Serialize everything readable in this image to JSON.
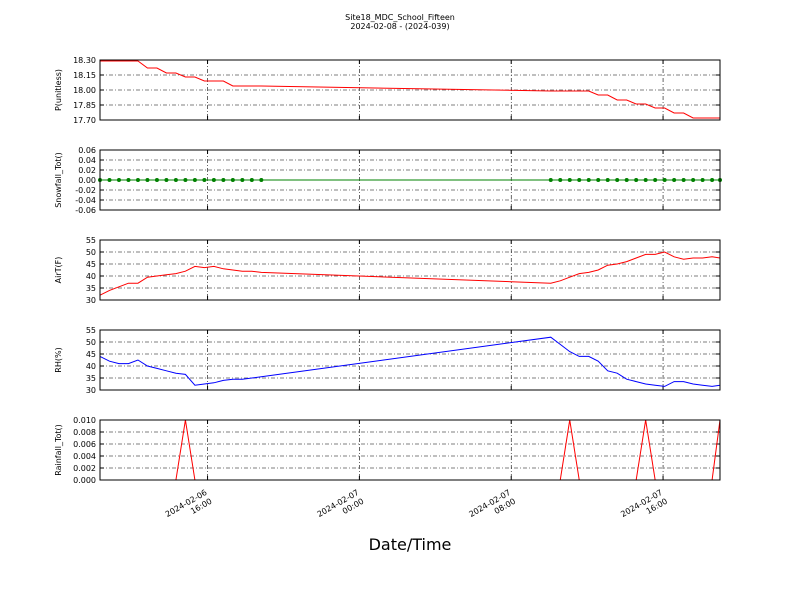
{
  "title": "Site18_MDC_School_Fifteen",
  "subtitle": "2024-02-08 - (2024-039)",
  "xlabel": "Date/Time",
  "chart_data": [
    {
      "type": "line",
      "ylabel": "P(unitless)",
      "grid": true,
      "x": [
        "2024-02-06 10:20",
        "2024-02-06 10:50",
        "2024-02-06 11:20",
        "2024-02-06 11:50",
        "2024-02-06 12:20",
        "2024-02-06 12:50",
        "2024-02-06 13:20",
        "2024-02-06 13:50",
        "2024-02-06 14:20",
        "2024-02-06 14:50",
        "2024-02-06 15:20",
        "2024-02-06 15:50",
        "2024-02-06 16:20",
        "2024-02-06 16:50",
        "2024-02-06 17:20",
        "2024-02-06 17:50",
        "2024-02-06 18:20",
        "2024-02-06 18:50",
        "2024-02-07 10:05",
        "2024-02-07 10:35",
        "2024-02-07 11:05",
        "2024-02-07 11:35",
        "2024-02-07 12:05",
        "2024-02-07 12:35",
        "2024-02-07 13:05",
        "2024-02-07 13:35",
        "2024-02-07 14:05",
        "2024-02-07 14:35",
        "2024-02-07 15:05",
        "2024-02-07 15:35",
        "2024-02-07 16:05",
        "2024-02-07 16:35",
        "2024-02-07 17:05",
        "2024-02-07 17:35",
        "2024-02-07 18:05",
        "2024-02-07 18:35",
        "2024-02-07 19:00"
      ],
      "xlim": [
        "2024-02-06 10:20",
        "2024-02-07 19:00"
      ],
      "xticks": [
        "2024-02-06 16:00",
        "2024-02-07 00:00",
        "2024-02-07 08:00",
        "2024-02-07 16:00"
      ],
      "ylim": [
        17.7,
        18.3
      ],
      "yticks": [
        {
          "value": 17.7,
          "label": "17.70"
        },
        {
          "value": 17.85,
          "label": "17.85"
        },
        {
          "value": 18.0,
          "label": "18.00"
        },
        {
          "value": 18.15,
          "label": "18.15"
        },
        {
          "value": 18.3,
          "label": "18.30"
        }
      ],
      "series": [
        {
          "color": "#ff0000",
          "values": [
            18.29,
            18.29,
            18.29,
            18.29,
            18.29,
            18.22,
            18.22,
            18.17,
            18.17,
            18.13,
            18.13,
            18.09,
            18.09,
            18.09,
            18.04,
            18.04,
            18.04,
            18.04,
            17.99,
            17.99,
            17.99,
            17.99,
            17.99,
            17.95,
            17.95,
            17.9,
            17.9,
            17.86,
            17.86,
            17.82,
            17.82,
            17.77,
            17.77,
            17.72,
            17.72,
            17.72,
            17.72
          ]
        }
      ]
    },
    {
      "type": "line",
      "ylabel": "Snowfall_Tot()",
      "grid": true,
      "marker": true,
      "x": [
        "2024-02-06 10:20",
        "2024-02-06 10:50",
        "2024-02-06 11:20",
        "2024-02-06 11:50",
        "2024-02-06 12:20",
        "2024-02-06 12:50",
        "2024-02-06 13:20",
        "2024-02-06 13:50",
        "2024-02-06 14:20",
        "2024-02-06 14:50",
        "2024-02-06 15:20",
        "2024-02-06 15:50",
        "2024-02-06 16:20",
        "2024-02-06 16:50",
        "2024-02-06 17:20",
        "2024-02-06 17:50",
        "2024-02-06 18:20",
        "2024-02-06 18:50",
        "2024-02-07 10:05",
        "2024-02-07 10:35",
        "2024-02-07 11:05",
        "2024-02-07 11:35",
        "2024-02-07 12:05",
        "2024-02-07 12:35",
        "2024-02-07 13:05",
        "2024-02-07 13:35",
        "2024-02-07 14:05",
        "2024-02-07 14:35",
        "2024-02-07 15:05",
        "2024-02-07 15:35",
        "2024-02-07 16:05",
        "2024-02-07 16:35",
        "2024-02-07 17:05",
        "2024-02-07 17:35",
        "2024-02-07 18:05",
        "2024-02-07 18:35",
        "2024-02-07 19:00"
      ],
      "xlim": [
        "2024-02-06 10:20",
        "2024-02-07 19:00"
      ],
      "xticks": [
        "2024-02-06 16:00",
        "2024-02-07 00:00",
        "2024-02-07 08:00",
        "2024-02-07 16:00"
      ],
      "ylim": [
        -0.06,
        0.06
      ],
      "yticks": [
        {
          "value": -0.06,
          "label": "-0.06"
        },
        {
          "value": -0.04,
          "label": "-0.04"
        },
        {
          "value": -0.02,
          "label": "-0.02"
        },
        {
          "value": 0,
          "label": "0.00"
        },
        {
          "value": 0.02,
          "label": "0.02"
        },
        {
          "value": 0.04,
          "label": "0.04"
        },
        {
          "value": 0.06,
          "label": "0.06"
        }
      ],
      "series": [
        {
          "color": "#008000",
          "values": [
            0,
            0,
            0,
            0,
            0,
            0,
            0,
            0,
            0,
            0,
            0,
            0,
            0,
            0,
            0,
            0,
            0,
            0,
            0,
            0,
            0,
            0,
            0,
            0,
            0,
            0,
            0,
            0,
            0,
            0,
            0,
            0,
            0,
            0,
            0,
            0,
            0
          ]
        }
      ]
    },
    {
      "type": "line",
      "ylabel": "AirT(F)",
      "grid": true,
      "x": [
        "2024-02-06 10:20",
        "2024-02-06 10:50",
        "2024-02-06 11:20",
        "2024-02-06 11:50",
        "2024-02-06 12:20",
        "2024-02-06 12:50",
        "2024-02-06 13:20",
        "2024-02-06 13:50",
        "2024-02-06 14:20",
        "2024-02-06 14:50",
        "2024-02-06 15:20",
        "2024-02-06 15:50",
        "2024-02-06 16:20",
        "2024-02-06 16:50",
        "2024-02-06 17:20",
        "2024-02-06 17:50",
        "2024-02-06 18:20",
        "2024-02-06 18:50",
        "2024-02-07 10:05",
        "2024-02-07 10:35",
        "2024-02-07 11:05",
        "2024-02-07 11:35",
        "2024-02-07 12:05",
        "2024-02-07 12:35",
        "2024-02-07 13:05",
        "2024-02-07 13:35",
        "2024-02-07 14:05",
        "2024-02-07 14:35",
        "2024-02-07 15:05",
        "2024-02-07 15:35",
        "2024-02-07 16:05",
        "2024-02-07 16:35",
        "2024-02-07 17:05",
        "2024-02-07 17:35",
        "2024-02-07 18:05",
        "2024-02-07 18:35",
        "2024-02-07 19:00"
      ],
      "xlim": [
        "2024-02-06 10:20",
        "2024-02-07 19:00"
      ],
      "xticks": [
        "2024-02-06 16:00",
        "2024-02-07 00:00",
        "2024-02-07 08:00",
        "2024-02-07 16:00"
      ],
      "ylim": [
        30,
        55
      ],
      "yticks": [
        30,
        35,
        40,
        45,
        50,
        55
      ],
      "series": [
        {
          "color": "#ff0000",
          "values": [
            32,
            34,
            35.5,
            37,
            37,
            39.5,
            40,
            40.5,
            41,
            42,
            44,
            43.5,
            44,
            43,
            42.5,
            42,
            42,
            41.5,
            37,
            38,
            39.5,
            41,
            41.5,
            42.5,
            44.5,
            45,
            46,
            47.5,
            49,
            49,
            50,
            48,
            47,
            47.5,
            47.5,
            48,
            47.5
          ]
        }
      ]
    },
    {
      "type": "line",
      "ylabel": "RH(%)",
      "grid": true,
      "x": [
        "2024-02-06 10:20",
        "2024-02-06 10:50",
        "2024-02-06 11:20",
        "2024-02-06 11:50",
        "2024-02-06 12:20",
        "2024-02-06 12:50",
        "2024-02-06 13:20",
        "2024-02-06 13:50",
        "2024-02-06 14:20",
        "2024-02-06 14:50",
        "2024-02-06 15:20",
        "2024-02-06 15:50",
        "2024-02-06 16:20",
        "2024-02-06 16:50",
        "2024-02-06 17:20",
        "2024-02-06 17:50",
        "2024-02-06 18:20",
        "2024-02-06 18:50",
        "2024-02-07 10:05",
        "2024-02-07 10:35",
        "2024-02-07 11:05",
        "2024-02-07 11:35",
        "2024-02-07 12:05",
        "2024-02-07 12:35",
        "2024-02-07 13:05",
        "2024-02-07 13:35",
        "2024-02-07 14:05",
        "2024-02-07 14:35",
        "2024-02-07 15:05",
        "2024-02-07 15:35",
        "2024-02-07 16:05",
        "2024-02-07 16:35",
        "2024-02-07 17:05",
        "2024-02-07 17:35",
        "2024-02-07 18:05",
        "2024-02-07 18:35",
        "2024-02-07 19:00"
      ],
      "xlim": [
        "2024-02-06 10:20",
        "2024-02-07 19:00"
      ],
      "xticks": [
        "2024-02-06 16:00",
        "2024-02-07 00:00",
        "2024-02-07 08:00",
        "2024-02-07 16:00"
      ],
      "ylim": [
        30,
        55
      ],
      "yticks": [
        30,
        35,
        40,
        45,
        50,
        55
      ],
      "series": [
        {
          "color": "#0000ff",
          "values": [
            44,
            42,
            41,
            41,
            42.5,
            40,
            39,
            38,
            37,
            36.5,
            32,
            32.5,
            33,
            34,
            34.5,
            34.5,
            35,
            35.5,
            52,
            49,
            46,
            44,
            44,
            42,
            38,
            37,
            34.5,
            33.5,
            32.5,
            32,
            31.5,
            33.5,
            33.5,
            32.5,
            32,
            31.5,
            32
          ]
        }
      ]
    },
    {
      "type": "line",
      "ylabel": "Rainfall_Tot()",
      "grid": true,
      "x": [
        "2024-02-06 10:20",
        "2024-02-06 10:50",
        "2024-02-06 11:20",
        "2024-02-06 11:50",
        "2024-02-06 12:20",
        "2024-02-06 12:50",
        "2024-02-06 13:20",
        "2024-02-06 13:50",
        "2024-02-06 14:20",
        "2024-02-06 14:50",
        "2024-02-06 15:20",
        "2024-02-06 15:50",
        "2024-02-06 16:20",
        "2024-02-06 16:50",
        "2024-02-06 17:20",
        "2024-02-06 17:50",
        "2024-02-06 18:20",
        "2024-02-06 18:50",
        "2024-02-07 10:05",
        "2024-02-07 10:35",
        "2024-02-07 11:05",
        "2024-02-07 11:35",
        "2024-02-07 12:05",
        "2024-02-07 12:35",
        "2024-02-07 13:05",
        "2024-02-07 13:35",
        "2024-02-07 14:05",
        "2024-02-07 14:35",
        "2024-02-07 15:05",
        "2024-02-07 15:35",
        "2024-02-07 16:05",
        "2024-02-07 16:35",
        "2024-02-07 17:05",
        "2024-02-07 17:35",
        "2024-02-07 18:05",
        "2024-02-07 18:35",
        "2024-02-07 19:00"
      ],
      "xlim": [
        "2024-02-06 10:20",
        "2024-02-07 19:00"
      ],
      "xticks": [
        "2024-02-06 16:00",
        "2024-02-07 00:00",
        "2024-02-07 08:00",
        "2024-02-07 16:00"
      ],
      "ylim": [
        0,
        0.01
      ],
      "yticks": [
        {
          "value": 0,
          "label": "0.000"
        },
        {
          "value": 0.002,
          "label": "0.002"
        },
        {
          "value": 0.004,
          "label": "0.004"
        },
        {
          "value": 0.006,
          "label": "0.006"
        },
        {
          "value": 0.008,
          "label": "0.008"
        },
        {
          "value": 0.01,
          "label": "0.010"
        }
      ],
      "series": [
        {
          "color": "#ff0000",
          "values": [
            0,
            0,
            0,
            0,
            0,
            0,
            0,
            0,
            0,
            0.01,
            0,
            0,
            0,
            0,
            0,
            0,
            0,
            0,
            0,
            0,
            0.01,
            0,
            0,
            0,
            0,
            0,
            0,
            0,
            0.01,
            0,
            0,
            0,
            0,
            0,
            0,
            0,
            0.01
          ]
        }
      ]
    }
  ]
}
